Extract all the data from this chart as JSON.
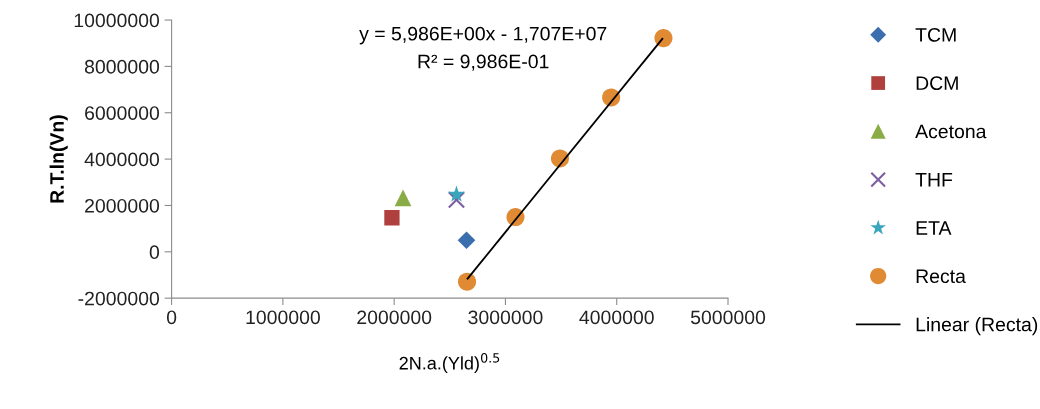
{
  "chart_data": {
    "type": "scatter",
    "xlabel": "2N.a.(Yld)$^{0.5}$",
    "ylabel": "R.T.ln(Vn)",
    "xlim": [
      0,
      5000000
    ],
    "xticks": [
      0,
      1000000,
      2000000,
      3000000,
      4000000,
      5000000
    ],
    "ylim": [
      -2000000,
      10000000
    ],
    "yticks": [
      -2000000,
      0,
      2000000,
      4000000,
      6000000,
      8000000,
      10000000
    ],
    "grid": false,
    "legend": "right",
    "annotations": [
      "y = 5,986E+00x - 1,707E+07",
      "R² = 9,986E-01"
    ],
    "series": [
      {
        "name": "TCM",
        "color": "#3b6eaf",
        "marker": "diamond",
        "x": [
          2650000
        ],
        "values": [
          500000
        ]
      },
      {
        "name": "DCM",
        "color": "#b0403e",
        "marker": "square",
        "x": [
          1980000
        ],
        "values": [
          1470000
        ]
      },
      {
        "name": "Acetona",
        "color": "#8aac46",
        "marker": "triangle",
        "x": [
          2080000
        ],
        "values": [
          2330000
        ]
      },
      {
        "name": "THF",
        "color": "#7b5ea3",
        "marker": "cross",
        "x": [
          2560000
        ],
        "values": [
          2240000
        ]
      },
      {
        "name": "ETA",
        "color": "#3aa6be",
        "marker": "star",
        "x": [
          2560000
        ],
        "values": [
          2470000
        ]
      },
      {
        "name": "Recta",
        "color": "#e08a34",
        "marker": "circle",
        "x": [
          2655000,
          3090000,
          3490000,
          3950000,
          4420000
        ],
        "values": [
          -1290000,
          1500000,
          4030000,
          6660000,
          9220000
        ]
      },
      {
        "name": "Linear (Recta)",
        "type": "line",
        "color": "#000000",
        "marker": "none",
        "line_style": "solid",
        "x": [
          2660000,
          4410000
        ],
        "values": [
          -1160000,
          9190000
        ]
      }
    ]
  }
}
